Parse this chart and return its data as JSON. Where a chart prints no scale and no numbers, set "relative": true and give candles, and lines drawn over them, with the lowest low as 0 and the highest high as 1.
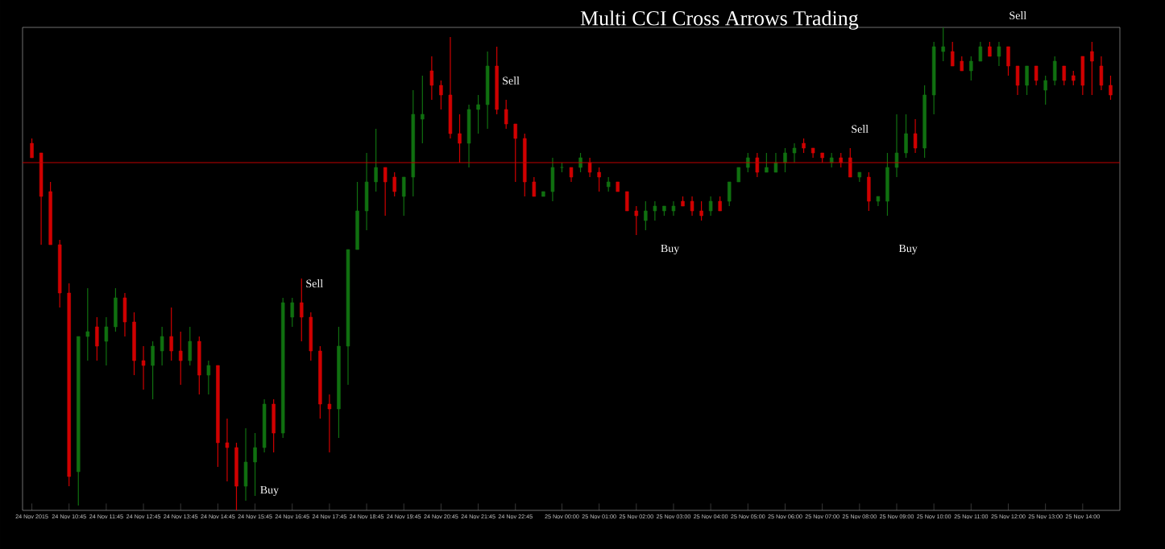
{
  "chart_data": {
    "type": "candlestick",
    "title": "Multi  CCI Cross Arrows Trading",
    "relative": true,
    "x": [
      "2015-11-24T09:45",
      "2015-11-24T10:00",
      "2015-11-24T10:15",
      "2015-11-24T10:30",
      "2015-11-24T10:45",
      "2015-11-24T11:00",
      "2015-11-24T11:15",
      "2015-11-24T11:30",
      "2015-11-24T11:45",
      "2015-11-24T12:00",
      "2015-11-24T12:15",
      "2015-11-24T12:30",
      "2015-11-24T12:45",
      "2015-11-24T13:00",
      "2015-11-24T13:15",
      "2015-11-24T13:30",
      "2015-11-24T13:45",
      "2015-11-24T14:00",
      "2015-11-24T14:15",
      "2015-11-24T14:30",
      "2015-11-24T14:45",
      "2015-11-24T15:00",
      "2015-11-24T15:15",
      "2015-11-24T15:30",
      "2015-11-24T15:45",
      "2015-11-24T16:00",
      "2015-11-24T16:15",
      "2015-11-24T16:30",
      "2015-11-24T16:45",
      "2015-11-24T17:00",
      "2015-11-24T17:15",
      "2015-11-24T17:30",
      "2015-11-24T17:45",
      "2015-11-24T18:00",
      "2015-11-24T18:15",
      "2015-11-24T18:30",
      "2015-11-24T18:45",
      "2015-11-24T19:00",
      "2015-11-24T19:15",
      "2015-11-24T19:30",
      "2015-11-24T19:45",
      "2015-11-24T20:00",
      "2015-11-24T20:15",
      "2015-11-24T20:30",
      "2015-11-24T20:45",
      "2015-11-24T21:00",
      "2015-11-24T21:15",
      "2015-11-24T21:30",
      "2015-11-24T21:45",
      "2015-11-24T22:00",
      "2015-11-24T22:15",
      "2015-11-24T22:30",
      "2015-11-24T22:45",
      "2015-11-24T23:00",
      "2015-11-24T23:15",
      "2015-11-24T23:30",
      "2015-11-24T23:45",
      "2015-11-25T00:00",
      "2015-11-25T00:15",
      "2015-11-25T00:30",
      "2015-11-25T00:45",
      "2015-11-25T01:00",
      "2015-11-25T01:15",
      "2015-11-25T01:30",
      "2015-11-25T01:45",
      "2015-11-25T02:00",
      "2015-11-25T02:15",
      "2015-11-25T02:30",
      "2015-11-25T02:45",
      "2015-11-25T03:00",
      "2015-11-25T03:15",
      "2015-11-25T03:30",
      "2015-11-25T03:45",
      "2015-11-25T04:00",
      "2015-11-25T04:15",
      "2015-11-25T04:30",
      "2015-11-25T04:45",
      "2015-11-25T05:00",
      "2015-11-25T05:15",
      "2015-11-25T05:30",
      "2015-11-25T05:45",
      "2015-11-25T06:00",
      "2015-11-25T06:15",
      "2015-11-25T06:30",
      "2015-11-25T06:45",
      "2015-11-25T07:00",
      "2015-11-25T07:15",
      "2015-11-25T07:30",
      "2015-11-25T07:45",
      "2015-11-25T08:00",
      "2015-11-25T08:15",
      "2015-11-25T08:30",
      "2015-11-25T08:45",
      "2015-11-25T09:00",
      "2015-11-25T09:15",
      "2015-11-25T09:30",
      "2015-11-25T09:45",
      "2015-11-25T10:00",
      "2015-11-25T10:15",
      "2015-11-25T10:30",
      "2015-11-25T10:45",
      "2015-11-25T11:00",
      "2015-11-25T11:15",
      "2015-11-25T11:30",
      "2015-11-25T11:45",
      "2015-11-25T12:00",
      "2015-11-25T12:15",
      "2015-11-25T12:30",
      "2015-11-25T12:45",
      "2015-11-25T13:00",
      "2015-11-25T13:15",
      "2015-11-25T13:30",
      "2015-11-25T13:45",
      "2015-11-25T14:00",
      "2015-11-25T14:15",
      "2015-11-25T14:30",
      "2015-11-25T14:45"
    ],
    "ohlc": [
      [
        0.76,
        0.77,
        0.73,
        0.73
      ],
      [
        0.74,
        0.74,
        0.55,
        0.65
      ],
      [
        0.66,
        0.68,
        0.55,
        0.55
      ],
      [
        0.55,
        0.56,
        0.42,
        0.45
      ],
      [
        0.45,
        0.47,
        0.05,
        0.07
      ],
      [
        0.08,
        0.36,
        0.01,
        0.36
      ],
      [
        0.36,
        0.46,
        0.31,
        0.37
      ],
      [
        0.38,
        0.4,
        0.31,
        0.34
      ],
      [
        0.35,
        0.4,
        0.3,
        0.38
      ],
      [
        0.38,
        0.46,
        0.37,
        0.44
      ],
      [
        0.44,
        0.45,
        0.36,
        0.39
      ],
      [
        0.39,
        0.41,
        0.28,
        0.31
      ],
      [
        0.31,
        0.34,
        0.25,
        0.3
      ],
      [
        0.3,
        0.35,
        0.23,
        0.34
      ],
      [
        0.33,
        0.38,
        0.3,
        0.36
      ],
      [
        0.36,
        0.42,
        0.31,
        0.33
      ],
      [
        0.33,
        0.37,
        0.26,
        0.31
      ],
      [
        0.31,
        0.38,
        0.3,
        0.35
      ],
      [
        0.35,
        0.36,
        0.24,
        0.28
      ],
      [
        0.28,
        0.31,
        0.24,
        0.3
      ],
      [
        0.3,
        0.3,
        0.09,
        0.14
      ],
      [
        0.14,
        0.19,
        0.06,
        0.13
      ],
      [
        0.13,
        0.14,
        0,
        0.05
      ],
      [
        0.05,
        0.17,
        0.02,
        0.1
      ],
      [
        0.1,
        0.16,
        0.03,
        0.13
      ],
      [
        0.13,
        0.23,
        0.12,
        0.22
      ],
      [
        0.22,
        0.23,
        0.12,
        0.16
      ],
      [
        0.16,
        0.44,
        0.15,
        0.43
      ],
      [
        0.4,
        0.44,
        0.38,
        0.43
      ],
      [
        0.43,
        0.48,
        0.35,
        0.4
      ],
      [
        0.4,
        0.41,
        0.31,
        0.33
      ],
      [
        0.33,
        0.34,
        0.19,
        0.22
      ],
      [
        0.22,
        0.24,
        0.12,
        0.21
      ],
      [
        0.21,
        0.38,
        0.15,
        0.34
      ],
      [
        0.34,
        0.54,
        0.26,
        0.54
      ],
      [
        0.54,
        0.68,
        0.54,
        0.62
      ],
      [
        0.62,
        0.74,
        0.58,
        0.68
      ],
      [
        0.68,
        0.79,
        0.66,
        0.71
      ],
      [
        0.71,
        0.71,
        0.61,
        0.68
      ],
      [
        0.69,
        0.7,
        0.65,
        0.66
      ],
      [
        0.65,
        0.69,
        0.61,
        0.69
      ],
      [
        0.69,
        0.87,
        0.65,
        0.82
      ],
      [
        0.81,
        0.9,
        0.76,
        0.82
      ],
      [
        0.91,
        0.94,
        0.85,
        0.88
      ],
      [
        0.88,
        0.89,
        0.83,
        0.86
      ],
      [
        0.86,
        0.98,
        0.77,
        0.78
      ],
      [
        0.78,
        0.82,
        0.72,
        0.76
      ],
      [
        0.76,
        0.84,
        0.71,
        0.83
      ],
      [
        0.83,
        0.86,
        0.78,
        0.84
      ],
      [
        0.84,
        0.95,
        0.79,
        0.92
      ],
      [
        0.92,
        0.96,
        0.82,
        0.83
      ],
      [
        0.83,
        0.85,
        0.79,
        0.8
      ],
      [
        0.8,
        0.8,
        0.68,
        0.77
      ],
      [
        0.77,
        0.78,
        0.65,
        0.68
      ],
      [
        0.68,
        0.69,
        0.65,
        0.65
      ],
      [
        0.65,
        0.66,
        0.65,
        0.66
      ],
      [
        0.66,
        0.73,
        0.64,
        0.71
      ],
      [
        0.71,
        0.72,
        0.7,
        0.71
      ],
      [
        0.71,
        0.71,
        0.68,
        0.69
      ],
      [
        0.71,
        0.74,
        0.7,
        0.73
      ],
      [
        0.72,
        0.73,
        0.69,
        0.7
      ],
      [
        0.7,
        0.71,
        0.66,
        0.69
      ],
      [
        0.67,
        0.69,
        0.66,
        0.68
      ],
      [
        0.68,
        0.68,
        0.66,
        0.66
      ],
      [
        0.66,
        0.66,
        0.62,
        0.62
      ],
      [
        0.62,
        0.63,
        0.57,
        0.61
      ],
      [
        0.6,
        0.64,
        0.58,
        0.62
      ],
      [
        0.62,
        0.64,
        0.6,
        0.63
      ],
      [
        0.62,
        0.63,
        0.61,
        0.63
      ],
      [
        0.62,
        0.64,
        0.61,
        0.63
      ],
      [
        0.64,
        0.65,
        0.63,
        0.63
      ],
      [
        0.64,
        0.65,
        0.61,
        0.62
      ],
      [
        0.62,
        0.64,
        0.6,
        0.61
      ],
      [
        0.62,
        0.65,
        0.61,
        0.64
      ],
      [
        0.64,
        0.65,
        0.62,
        0.62
      ],
      [
        0.64,
        0.68,
        0.63,
        0.68
      ],
      [
        0.68,
        0.71,
        0.68,
        0.71
      ],
      [
        0.71,
        0.74,
        0.7,
        0.73
      ],
      [
        0.73,
        0.74,
        0.69,
        0.7
      ],
      [
        0.7,
        0.74,
        0.7,
        0.71
      ],
      [
        0.7,
        0.74,
        0.7,
        0.72
      ],
      [
        0.72,
        0.75,
        0.7,
        0.74
      ],
      [
        0.74,
        0.76,
        0.72,
        0.75
      ],
      [
        0.76,
        0.77,
        0.74,
        0.75
      ],
      [
        0.75,
        0.75,
        0.73,
        0.74
      ],
      [
        0.74,
        0.74,
        0.72,
        0.73
      ],
      [
        0.72,
        0.74,
        0.71,
        0.73
      ],
      [
        0.73,
        0.74,
        0.71,
        0.72
      ],
      [
        0.73,
        0.75,
        0.69,
        0.69
      ],
      [
        0.69,
        0.7,
        0.68,
        0.7
      ],
      [
        0.69,
        0.7,
        0.62,
        0.64
      ],
      [
        0.64,
        0.65,
        0.63,
        0.65
      ],
      [
        0.64,
        0.74,
        0.61,
        0.71
      ],
      [
        0.71,
        0.82,
        0.69,
        0.74
      ],
      [
        0.74,
        0.82,
        0.73,
        0.78
      ],
      [
        0.78,
        0.81,
        0.74,
        0.75
      ],
      [
        0.75,
        0.88,
        0.73,
        0.86
      ],
      [
        0.86,
        0.97,
        0.82,
        0.96
      ],
      [
        0.95,
        1,
        0.93,
        0.96
      ],
      [
        0.95,
        0.97,
        0.92,
        0.92
      ],
      [
        0.93,
        0.94,
        0.91,
        0.91
      ],
      [
        0.91,
        0.94,
        0.89,
        0.93
      ],
      [
        0.93,
        0.97,
        0.93,
        0.96
      ],
      [
        0.96,
        0.97,
        0.94,
        0.94
      ],
      [
        0.94,
        0.97,
        0.92,
        0.96
      ],
      [
        0.96,
        0.96,
        0.9,
        0.92
      ],
      [
        0.92,
        0.92,
        0.86,
        0.88
      ],
      [
        0.88,
        0.92,
        0.86,
        0.92
      ],
      [
        0.92,
        0.92,
        0.88,
        0.89
      ],
      [
        0.87,
        0.9,
        0.84,
        0.89
      ],
      [
        0.89,
        0.94,
        0.88,
        0.93
      ],
      [
        0.92,
        0.92,
        0.88,
        0.89
      ],
      [
        0.9,
        0.91,
        0.88,
        0.89
      ],
      [
        0.94,
        0.94,
        0.86,
        0.88
      ],
      [
        0.95,
        0.97,
        0.86,
        0.93
      ],
      [
        0.92,
        0.94,
        0.87,
        0.88
      ],
      [
        0.88,
        0.9,
        0.85,
        0.86
      ]
    ],
    "colors": [
      "#d00000",
      "#d00000",
      "#d00000",
      "#d00000",
      "#d00000",
      "#107010",
      "#107010",
      "#d00000",
      "#107010",
      "#107010",
      "#d00000",
      "#d00000",
      "#d00000",
      "#107010",
      "#107010",
      "#d00000",
      "#d00000",
      "#107010",
      "#d00000",
      "#107010",
      "#d00000",
      "#d00000",
      "#d00000",
      "#107010",
      "#107010",
      "#107010",
      "#d00000",
      "#107010",
      "#107010",
      "#d00000",
      "#d00000",
      "#d00000",
      "#d00000",
      "#107010",
      "#107010",
      "#107010",
      "#107010",
      "#107010",
      "#d00000",
      "#d00000",
      "#107010",
      "#107010",
      "#107010",
      "#d00000",
      "#d00000",
      "#d00000",
      "#d00000",
      "#107010",
      "#107010",
      "#107010",
      "#d00000",
      "#d00000",
      "#d00000",
      "#d00000",
      "#d00000",
      "#107010",
      "#107010",
      "#107010",
      "#d00000",
      "#107010",
      "#d00000",
      "#d00000",
      "#107010",
      "#d00000",
      "#d00000",
      "#d00000",
      "#107010",
      "#107010",
      "#107010",
      "#107010",
      "#d00000",
      "#d00000",
      "#d00000",
      "#107010",
      "#d00000",
      "#107010",
      "#107010",
      "#107010",
      "#d00000",
      "#107010",
      "#107010",
      "#107010",
      "#107010",
      "#d00000",
      "#d00000",
      "#d00000",
      "#107010",
      "#d00000",
      "#d00000",
      "#107010",
      "#d00000",
      "#107010",
      "#107010",
      "#107010",
      "#107010",
      "#d00000",
      "#107010",
      "#107010",
      "#107010",
      "#d00000",
      "#d00000",
      "#107010",
      "#107010",
      "#d00000",
      "#107010",
      "#d00000",
      "#d00000",
      "#107010",
      "#d00000",
      "#107010",
      "#107010",
      "#d00000",
      "#d00000",
      "#d00000",
      "#d00000",
      "#d00000",
      "#d00000"
    ],
    "xlim": [
      "2015-11-24T09:30",
      "2015-11-25T15:00"
    ],
    "xticks": [
      {
        "value": "2015-11-24T09:45",
        "label": "24 Nov 2015"
      },
      {
        "value": "2015-11-24T10:45",
        "label": "24 Nov 10:45"
      },
      {
        "value": "2015-11-24T11:45",
        "label": "24 Nov 11:45"
      },
      {
        "value": "2015-11-24T12:45",
        "label": "24 Nov 12:45"
      },
      {
        "value": "2015-11-24T13:45",
        "label": "24 Nov 13:45"
      },
      {
        "value": "2015-11-24T14:45",
        "label": "24 Nov 14:45"
      },
      {
        "value": "2015-11-24T15:45",
        "label": "24 Nov 15:45"
      },
      {
        "value": "2015-11-24T16:45",
        "label": "24 Nov 16:45"
      },
      {
        "value": "2015-11-24T17:45",
        "label": "24 Nov 17:45"
      },
      {
        "value": "2015-11-24T18:45",
        "label": "24 Nov 18:45"
      },
      {
        "value": "2015-11-24T19:45",
        "label": "24 Nov 19:45"
      },
      {
        "value": "2015-11-24T20:45",
        "label": "24 Nov 20:45"
      },
      {
        "value": "2015-11-24T21:45",
        "label": "24 Nov 21:45"
      },
      {
        "value": "2015-11-24T22:45",
        "label": "24 Nov 22:45"
      },
      {
        "value": "2015-11-25T00:00",
        "label": "25 Nov 00:00"
      },
      {
        "value": "2015-11-25T01:00",
        "label": "25 Nov 01:00"
      },
      {
        "value": "2015-11-25T02:00",
        "label": "25 Nov 02:00"
      },
      {
        "value": "2015-11-25T03:00",
        "label": "25 Nov 03:00"
      },
      {
        "value": "2015-11-25T04:00",
        "label": "25 Nov 04:00"
      },
      {
        "value": "2015-11-25T05:00",
        "label": "25 Nov 05:00"
      },
      {
        "value": "2015-11-25T06:00",
        "label": "25 Nov 06:00"
      },
      {
        "value": "2015-11-25T07:00",
        "label": "25 Nov 07:00"
      },
      {
        "value": "2015-11-25T08:00",
        "label": "25 Nov 08:00"
      },
      {
        "value": "2015-11-25T09:00",
        "label": "25 Nov 09:00"
      },
      {
        "value": "2015-11-25T10:00",
        "label": "25 Nov 10:00"
      },
      {
        "value": "2015-11-25T11:00",
        "label": "25 Nov 11:00"
      },
      {
        "value": "2015-11-25T12:00",
        "label": "25 Nov 12:00"
      },
      {
        "value": "2015-11-25T13:00",
        "label": "25 Nov 13:00"
      },
      {
        "value": "2015-11-25T14:00",
        "label": "25 Nov 14:00"
      }
    ],
    "ref_lines": [
      {
        "axis": "y",
        "value": 0.72,
        "color": "#c00000"
      }
    ],
    "annotations": [
      "Buy",
      "Sell",
      "Sell",
      "Buy",
      "Sell",
      "Buy",
      "Sell"
    ]
  }
}
